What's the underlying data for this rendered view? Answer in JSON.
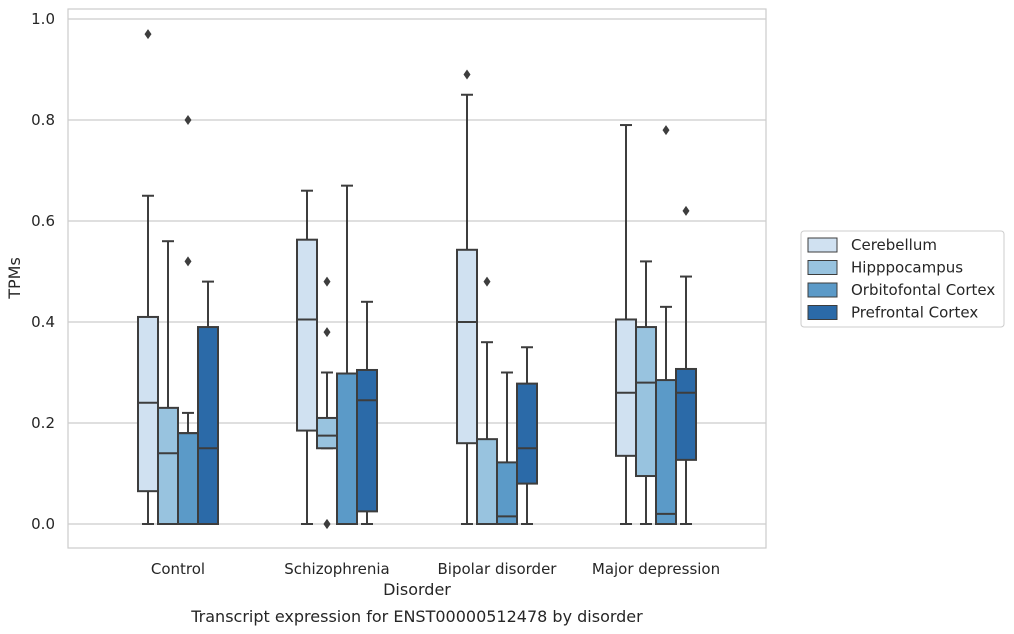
{
  "chart_data": {
    "type": "box",
    "caption": "Transcript expression for ENST00000512478 by disorder",
    "xlabel": "Disorder",
    "ylabel": "TPMs",
    "ylim": [
      -0.045,
      1.02
    ],
    "yticks": [
      "0.0",
      "0.2",
      "0.4",
      "0.6",
      "0.8",
      "1.0"
    ],
    "ytick_values": [
      0.0,
      0.2,
      0.4,
      0.6,
      0.8,
      1.0
    ],
    "grid": "horizontal",
    "legend_position": "right",
    "categories": [
      "Control",
      "Schizophrenia",
      "Bipolar disorder",
      "Major depression"
    ],
    "series": [
      {
        "name": "Cerebellum",
        "color": "#d0e1f1",
        "boxes": [
          {
            "min": 0.0,
            "q1": 0.065,
            "median": 0.24,
            "q3": 0.41,
            "max": 0.65,
            "outliers": [
              0.97
            ]
          },
          {
            "min": 0.0,
            "q1": 0.185,
            "median": 0.405,
            "q3": 0.563,
            "max": 0.66,
            "outliers": []
          },
          {
            "min": 0.0,
            "q1": 0.16,
            "median": 0.4,
            "q3": 0.543,
            "max": 0.85,
            "outliers": [
              0.89
            ]
          },
          {
            "min": 0.0,
            "q1": 0.135,
            "median": 0.26,
            "q3": 0.405,
            "max": 0.79,
            "outliers": []
          }
        ]
      },
      {
        "name": "Hipppocampus",
        "color": "#98c3df",
        "boxes": [
          {
            "min": 0.0,
            "q1": 0.0,
            "median": 0.14,
            "q3": 0.23,
            "max": 0.56,
            "outliers": []
          },
          {
            "min": 0.15,
            "q1": 0.15,
            "median": 0.175,
            "q3": 0.21,
            "max": 0.3,
            "outliers": [
              0.48,
              0.38,
              0.0,
              0.0
            ]
          },
          {
            "min": 0.0,
            "q1": 0.0,
            "median": 0.0,
            "q3": 0.168,
            "max": 0.36,
            "outliers": [
              0.48
            ]
          },
          {
            "min": 0.0,
            "q1": 0.095,
            "median": 0.28,
            "q3": 0.39,
            "max": 0.52,
            "outliers": []
          }
        ]
      },
      {
        "name": "Orbitofontal Cortex",
        "color": "#5b9ac8",
        "boxes": [
          {
            "min": 0.0,
            "q1": 0.0,
            "median": 0.18,
            "q3": 0.18,
            "max": 0.22,
            "outliers": [
              0.8,
              0.52
            ]
          },
          {
            "min": 0.0,
            "q1": 0.0,
            "median": 0.0,
            "q3": 0.298,
            "max": 0.67,
            "outliers": []
          },
          {
            "min": 0.0,
            "q1": 0.0,
            "median": 0.015,
            "q3": 0.122,
            "max": 0.3,
            "outliers": []
          },
          {
            "min": 0.0,
            "q1": 0.0,
            "median": 0.02,
            "q3": 0.285,
            "max": 0.43,
            "outliers": [
              0.78
            ]
          }
        ]
      },
      {
        "name": "Prefrontal Cortex",
        "color": "#2b6aa8",
        "boxes": [
          {
            "min": 0.0,
            "q1": 0.0,
            "median": 0.15,
            "q3": 0.39,
            "max": 0.48,
            "outliers": []
          },
          {
            "min": 0.0,
            "q1": 0.025,
            "median": 0.245,
            "q3": 0.305,
            "max": 0.44,
            "outliers": []
          },
          {
            "min": 0.0,
            "q1": 0.08,
            "median": 0.15,
            "q3": 0.278,
            "max": 0.35,
            "outliers": []
          },
          {
            "min": 0.0,
            "q1": 0.127,
            "median": 0.26,
            "q3": 0.307,
            "max": 0.49,
            "outliers": [
              0.62
            ]
          }
        ]
      }
    ]
  }
}
